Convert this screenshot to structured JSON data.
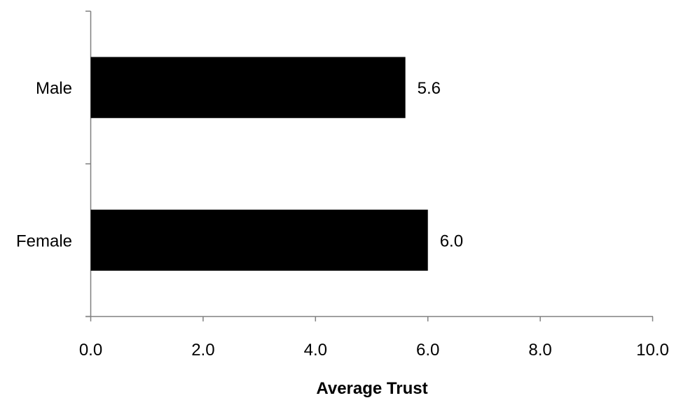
{
  "chart_data": {
    "type": "bar",
    "orientation": "horizontal",
    "categories": [
      "Male",
      "Female"
    ],
    "values": [
      5.6,
      6.0
    ],
    "data_labels": [
      "5.6",
      "6.0"
    ],
    "xlabel": "Average Trust",
    "ylabel": "",
    "xlim": [
      0,
      10
    ],
    "x_ticks": [
      0,
      2,
      4,
      6,
      8,
      10
    ],
    "x_tick_labels": [
      "0.0",
      "2.0",
      "4.0",
      "6.0",
      "8.0",
      "10.0"
    ],
    "grid": false,
    "legend": "none",
    "bar_color": "#000000"
  }
}
